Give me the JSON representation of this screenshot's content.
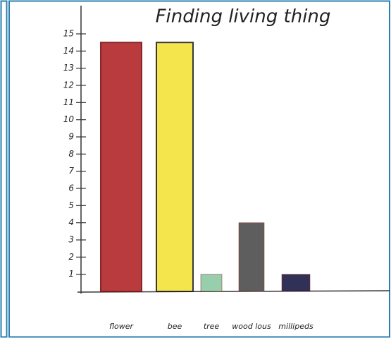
{
  "chart_data": {
    "type": "bar",
    "title": "Finding living thing",
    "categories": [
      "flower",
      "bee",
      "tree",
      "wood lous",
      "millipeds"
    ],
    "values": [
      14.5,
      14.5,
      1,
      4,
      1
    ],
    "colors": [
      "#b3262a",
      "#f4e33a",
      "#8cc9a3",
      "#4d4d4d",
      "#1b1b45"
    ],
    "ylim": [
      0,
      15
    ],
    "yticks": [
      1,
      2,
      3,
      4,
      5,
      6,
      7,
      8,
      9,
      10,
      11,
      12,
      13,
      14,
      15
    ],
    "grid": false
  }
}
